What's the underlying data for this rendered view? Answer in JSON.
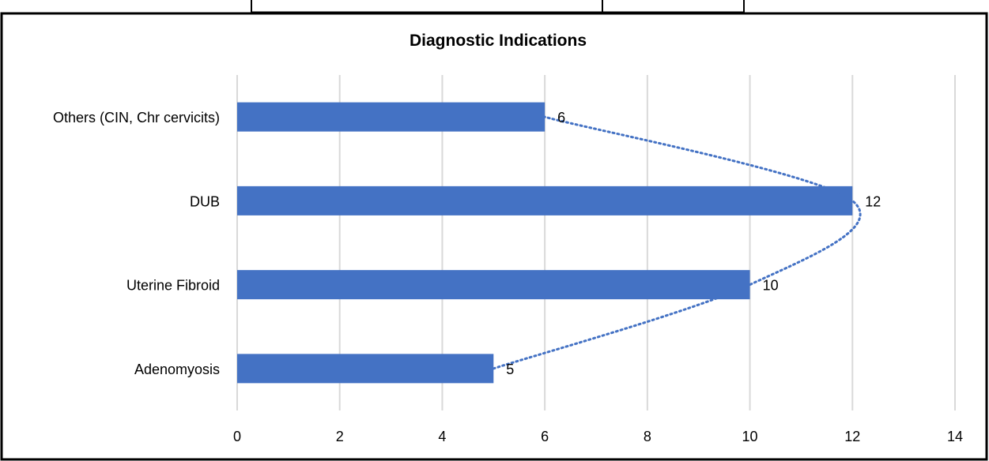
{
  "chart_data": {
    "type": "bar",
    "orientation": "horizontal",
    "title": "Diagnostic Indications",
    "xlabel": "",
    "ylabel": "",
    "categories": [
      "Adenomyosis",
      "Uterine Fibroid",
      "DUB",
      "Others (CIN, Chr cervicits)"
    ],
    "series": [
      {
        "values": [
          5,
          10,
          12,
          6
        ]
      }
    ],
    "xlim": [
      0,
      14
    ],
    "xticks": [
      "0",
      "2",
      "4",
      "6",
      "8",
      "10",
      "12",
      "14"
    ],
    "grid": "vertical",
    "data_labels": true,
    "trendline": "dotted curve through bar ends",
    "bar_color": "#4472C4",
    "grid_color": "#D9D9D9",
    "border_color": "#000000"
  }
}
